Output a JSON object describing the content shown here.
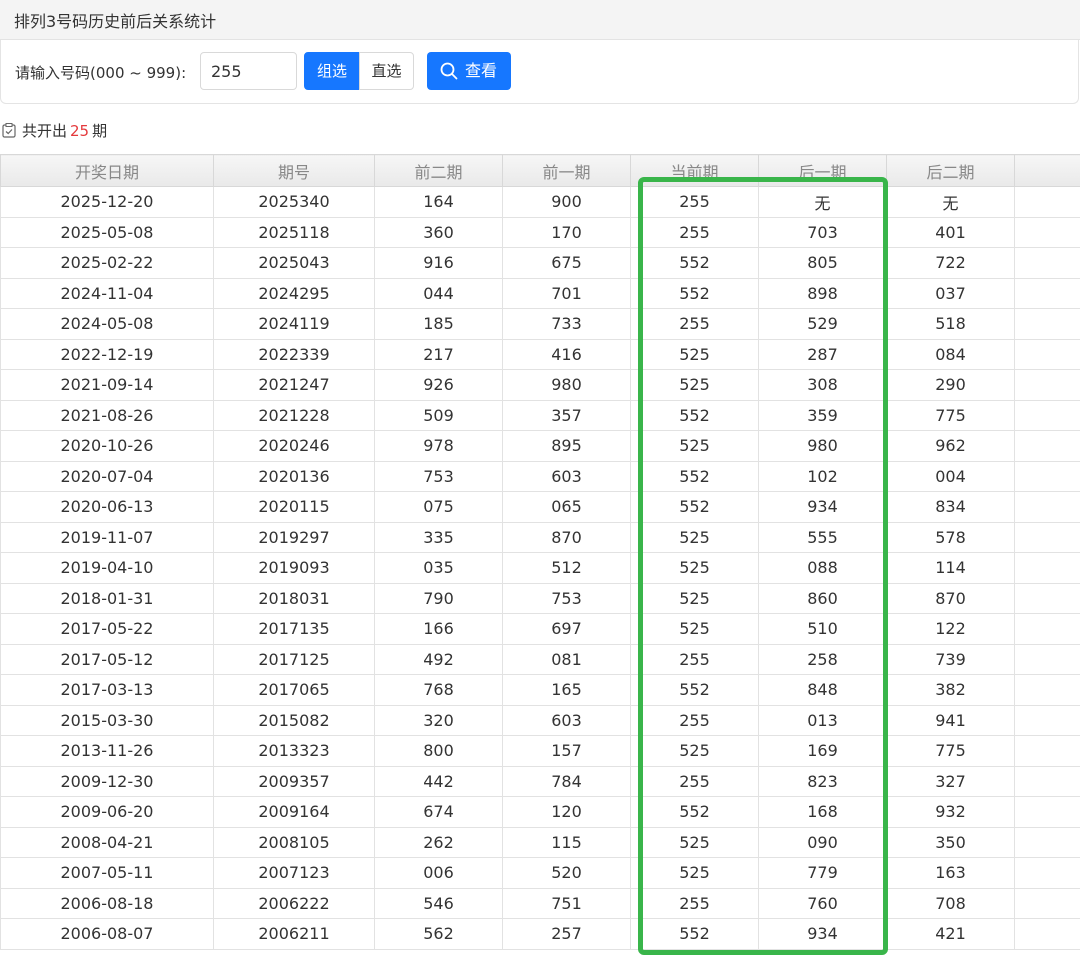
{
  "header": {
    "title": "排列3号码历史前后关系统计"
  },
  "search": {
    "label": "请输入号码(000 ~ 999):",
    "input": "255",
    "buttons": [
      "组选",
      "直选"
    ],
    "submit": "查看"
  },
  "summary": {
    "prefix": "共开出",
    "count": "25",
    "suffix": "期"
  },
  "table": {
    "columns": [
      "开奖日期",
      "期号",
      "前二期",
      "前一期",
      "当前期",
      "后一期",
      "后二期"
    ],
    "rows": [
      [
        "2025-12-20",
        "2025340",
        "164",
        "900",
        "255",
        "无",
        "无"
      ],
      [
        "2025-05-08",
        "2025118",
        "360",
        "170",
        "255",
        "703",
        "401"
      ],
      [
        "2025-02-22",
        "2025043",
        "916",
        "675",
        "552",
        "805",
        "722"
      ],
      [
        "2024-11-04",
        "2024295",
        "044",
        "701",
        "552",
        "898",
        "037"
      ],
      [
        "2024-05-08",
        "2024119",
        "185",
        "733",
        "255",
        "529",
        "518"
      ],
      [
        "2022-12-19",
        "2022339",
        "217",
        "416",
        "525",
        "287",
        "084"
      ],
      [
        "2021-09-14",
        "2021247",
        "926",
        "980",
        "525",
        "308",
        "290"
      ],
      [
        "2021-08-26",
        "2021228",
        "509",
        "357",
        "552",
        "359",
        "775"
      ],
      [
        "2020-10-26",
        "2020246",
        "978",
        "895",
        "525",
        "980",
        "962"
      ],
      [
        "2020-07-04",
        "2020136",
        "753",
        "603",
        "552",
        "102",
        "004"
      ],
      [
        "2020-06-13",
        "2020115",
        "075",
        "065",
        "552",
        "934",
        "834"
      ],
      [
        "2019-11-07",
        "2019297",
        "335",
        "870",
        "525",
        "555",
        "578"
      ],
      [
        "2019-04-10",
        "2019093",
        "035",
        "512",
        "525",
        "088",
        "114"
      ],
      [
        "2018-01-31",
        "2018031",
        "790",
        "753",
        "525",
        "860",
        "870"
      ],
      [
        "2017-05-22",
        "2017135",
        "166",
        "697",
        "525",
        "510",
        "122"
      ],
      [
        "2017-05-12",
        "2017125",
        "492",
        "081",
        "255",
        "258",
        "739"
      ],
      [
        "2017-03-13",
        "2017065",
        "768",
        "165",
        "552",
        "848",
        "382"
      ],
      [
        "2015-03-30",
        "2015082",
        "320",
        "603",
        "255",
        "013",
        "941"
      ],
      [
        "2013-11-26",
        "2013323",
        "800",
        "157",
        "525",
        "169",
        "775"
      ],
      [
        "2009-12-30",
        "2009357",
        "442",
        "784",
        "255",
        "823",
        "327"
      ],
      [
        "2009-06-20",
        "2009164",
        "674",
        "120",
        "552",
        "168",
        "932"
      ],
      [
        "2008-04-21",
        "2008105",
        "262",
        "115",
        "525",
        "090",
        "350"
      ],
      [
        "2007-05-11",
        "2007123",
        "006",
        "520",
        "525",
        "779",
        "163"
      ],
      [
        "2006-08-18",
        "2006222",
        "546",
        "751",
        "255",
        "760",
        "708"
      ],
      [
        "2006-08-07",
        "2006211",
        "562",
        "257",
        "552",
        "934",
        "421"
      ]
    ]
  }
}
